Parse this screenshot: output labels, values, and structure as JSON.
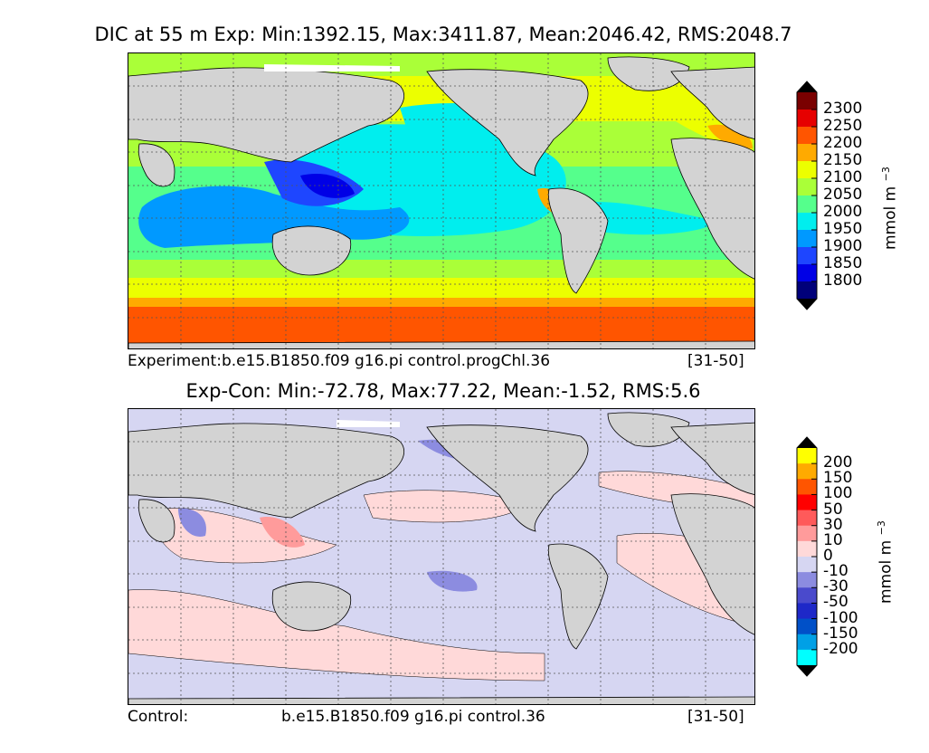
{
  "top_panel": {
    "title": "DIC at 55 m Exp: Min:1392.15, Max:3411.87, Mean:2046.42, RMS:2048.7",
    "caption_left": "Experiment:b.e15.B1850.f09 g16.pi control.progChl.36",
    "caption_right": "[31-50]",
    "colorbar": {
      "unit": "mmol m",
      "unit_exp": "−3",
      "tick_labels": [
        "2300",
        "2250",
        "2200",
        "2150",
        "2100",
        "2050",
        "2000",
        "1950",
        "1900",
        "1850",
        "1800"
      ],
      "colors": [
        "#7a0000",
        "#e60000",
        "#ff5500",
        "#ffaa00",
        "#ecff00",
        "#aaff38",
        "#55ff8c",
        "#00eeee",
        "#0099ff",
        "#1e46ff",
        "#0000e6",
        "#00007a"
      ],
      "over_color": "#000000",
      "under_color": "#000000"
    }
  },
  "bottom_panel": {
    "title": "Exp-Con: Min:-72.78, Max:77.22, Mean:-1.52, RMS:5.6",
    "caption_left": "Control:",
    "caption_center": "b.e15.B1850.f09 g16.pi control.36",
    "caption_right": "[31-50]",
    "colorbar": {
      "unit": "mmol m",
      "unit_exp": "−3",
      "tick_labels": [
        "200",
        "150",
        "100",
        "50",
        "30",
        "10",
        "0",
        "-10",
        "-30",
        "-50",
        "-100",
        "-150",
        "-200"
      ],
      "colors": [
        "#ffff00",
        "#ffaa00",
        "#ff5500",
        "#ff0000",
        "#ff5a5a",
        "#ff9b9b",
        "#ffd9d9",
        "#d6d6f2",
        "#8c8ce0",
        "#4a4acc",
        "#1e28c8",
        "#0050c8",
        "#00a0e6",
        "#00ffff"
      ],
      "over_color": "#000000",
      "under_color": "#000000"
    }
  },
  "colors": {
    "land": "#d3d3d3",
    "ice": "#ffffff",
    "grid": "#555555"
  }
}
